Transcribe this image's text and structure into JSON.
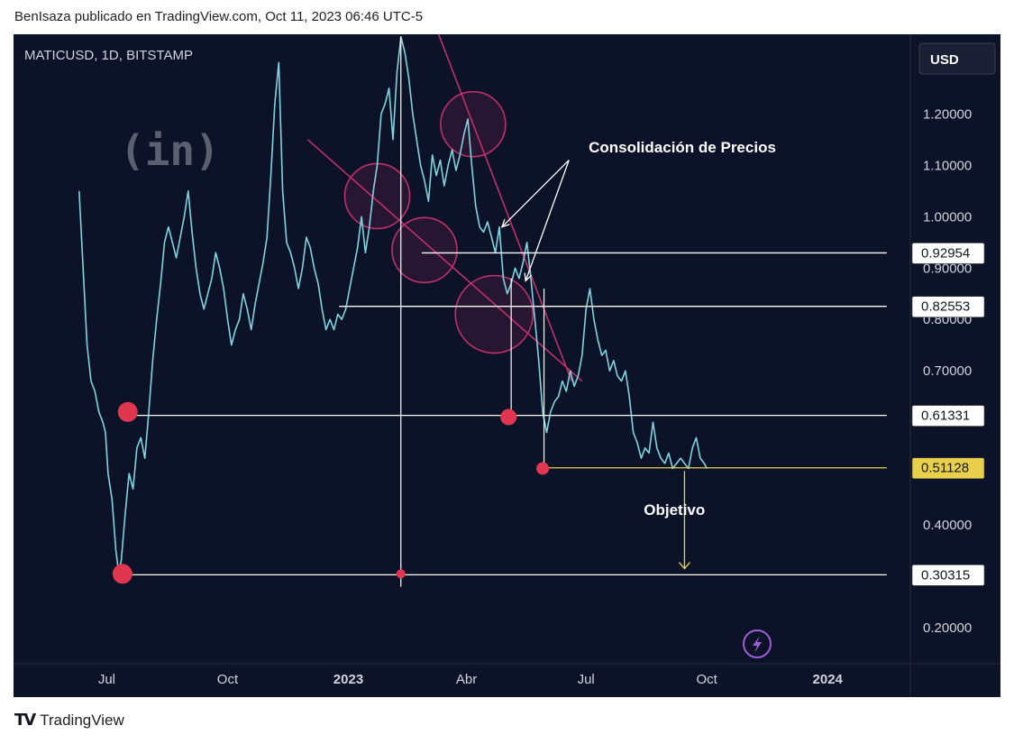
{
  "header": {
    "text": "BenIsaza publicado en TradingView.com, Oct 11, 2023 06:46 UTC-5"
  },
  "footer": {
    "logo": "TV",
    "brand": "TradingView"
  },
  "chart_data": {
    "type": "line",
    "symbol": "MATICUSD, 1D, BITSTAMP",
    "currency": "USD",
    "watermark": "(in)",
    "ylim": [
      0.13,
      1.355
    ],
    "y_ticks": [
      "1.20000",
      "1.10000",
      "1.00000",
      "0.90000",
      "0.80000",
      "0.70000",
      "0.40000",
      "0.20000"
    ],
    "y_tick_values": [
      1.2,
      1.1,
      1.0,
      0.9,
      0.8,
      0.7,
      0.4,
      0.2
    ],
    "x_tick_labels": [
      {
        "label": "Jul",
        "t": 21,
        "bold": false
      },
      {
        "label": "Oct",
        "t": 113,
        "bold": false
      },
      {
        "label": "2023",
        "t": 205,
        "bold": true
      },
      {
        "label": "Abr",
        "t": 295,
        "bold": false
      },
      {
        "label": "Jul",
        "t": 386,
        "bold": false
      },
      {
        "label": "Oct",
        "t": 478,
        "bold": false
      },
      {
        "label": "2024",
        "t": 570,
        "bold": true
      }
    ],
    "xlim": [
      -50,
      633
    ],
    "price_series": [
      [
        0,
        1.05
      ],
      [
        3,
        0.9
      ],
      [
        6,
        0.75
      ],
      [
        9,
        0.68
      ],
      [
        12,
        0.66
      ],
      [
        15,
        0.62
      ],
      [
        18,
        0.6
      ],
      [
        20,
        0.58
      ],
      [
        22,
        0.5
      ],
      [
        25,
        0.45
      ],
      [
        28,
        0.35
      ],
      [
        30,
        0.31
      ],
      [
        32,
        0.33
      ],
      [
        35,
        0.42
      ],
      [
        38,
        0.5
      ],
      [
        41,
        0.47
      ],
      [
        44,
        0.55
      ],
      [
        47,
        0.57
      ],
      [
        50,
        0.53
      ],
      [
        53,
        0.62
      ],
      [
        56,
        0.72
      ],
      [
        59,
        0.8
      ],
      [
        62,
        0.87
      ],
      [
        65,
        0.95
      ],
      [
        68,
        0.98
      ],
      [
        71,
        0.95
      ],
      [
        74,
        0.92
      ],
      [
        77,
        0.96
      ],
      [
        80,
        1.0
      ],
      [
        83,
        1.05
      ],
      [
        86,
        0.97
      ],
      [
        89,
        0.9
      ],
      [
        92,
        0.85
      ],
      [
        95,
        0.82
      ],
      [
        98,
        0.85
      ],
      [
        101,
        0.88
      ],
      [
        104,
        0.93
      ],
      [
        107,
        0.9
      ],
      [
        110,
        0.86
      ],
      [
        113,
        0.8
      ],
      [
        116,
        0.75
      ],
      [
        119,
        0.78
      ],
      [
        122,
        0.8
      ],
      [
        125,
        0.85
      ],
      [
        128,
        0.82
      ],
      [
        131,
        0.78
      ],
      [
        134,
        0.83
      ],
      [
        137,
        0.87
      ],
      [
        140,
        0.91
      ],
      [
        143,
        0.96
      ],
      [
        146,
        1.08
      ],
      [
        149,
        1.22
      ],
      [
        152,
        1.3
      ],
      [
        155,
        1.05
      ],
      [
        158,
        0.95
      ],
      [
        161,
        0.93
      ],
      [
        164,
        0.9
      ],
      [
        167,
        0.86
      ],
      [
        170,
        0.9
      ],
      [
        173,
        0.96
      ],
      [
        176,
        0.94
      ],
      [
        179,
        0.9
      ],
      [
        182,
        0.87
      ],
      [
        185,
        0.82
      ],
      [
        188,
        0.78
      ],
      [
        191,
        0.8
      ],
      [
        194,
        0.78
      ],
      [
        197,
        0.81
      ],
      [
        200,
        0.8
      ],
      [
        203,
        0.82
      ],
      [
        206,
        0.86
      ],
      [
        209,
        0.9
      ],
      [
        212,
        0.94
      ],
      [
        215,
        1.0
      ],
      [
        218,
        0.93
      ],
      [
        221,
        0.98
      ],
      [
        224,
        1.05
      ],
      [
        227,
        1.1
      ],
      [
        230,
        1.2
      ],
      [
        233,
        1.22
      ],
      [
        236,
        1.25
      ],
      [
        239,
        1.15
      ],
      [
        242,
        1.28
      ],
      [
        245,
        1.35
      ],
      [
        248,
        1.32
      ],
      [
        251,
        1.27
      ],
      [
        254,
        1.2
      ],
      [
        257,
        1.15
      ],
      [
        260,
        1.1
      ],
      [
        263,
        1.07
      ],
      [
        266,
        1.03
      ],
      [
        269,
        1.12
      ],
      [
        272,
        1.08
      ],
      [
        275,
        1.11
      ],
      [
        278,
        1.06
      ],
      [
        281,
        1.1
      ],
      [
        284,
        1.13
      ],
      [
        287,
        1.09
      ],
      [
        290,
        1.12
      ],
      [
        293,
        1.16
      ],
      [
        296,
        1.19
      ],
      [
        299,
        1.1
      ],
      [
        302,
        1.02
      ],
      [
        305,
        0.98
      ],
      [
        308,
        0.97
      ],
      [
        311,
        0.99
      ],
      [
        314,
        0.96
      ],
      [
        317,
        0.93
      ],
      [
        320,
        0.98
      ],
      [
        323,
        0.88
      ],
      [
        326,
        0.85
      ],
      [
        329,
        0.87
      ],
      [
        332,
        0.9
      ],
      [
        335,
        0.88
      ],
      [
        338,
        0.91
      ],
      [
        341,
        0.95
      ],
      [
        344,
        0.88
      ],
      [
        347,
        0.8
      ],
      [
        350,
        0.72
      ],
      [
        353,
        0.62
      ],
      [
        356,
        0.58
      ],
      [
        359,
        0.62
      ],
      [
        362,
        0.64
      ],
      [
        365,
        0.65
      ],
      [
        368,
        0.68
      ],
      [
        371,
        0.66
      ],
      [
        374,
        0.7
      ],
      [
        377,
        0.67
      ],
      [
        380,
        0.69
      ],
      [
        383,
        0.73
      ],
      [
        386,
        0.82
      ],
      [
        389,
        0.86
      ],
      [
        392,
        0.8
      ],
      [
        395,
        0.76
      ],
      [
        398,
        0.73
      ],
      [
        401,
        0.74
      ],
      [
        404,
        0.7
      ],
      [
        407,
        0.72
      ],
      [
        410,
        0.69
      ],
      [
        413,
        0.68
      ],
      [
        416,
        0.7
      ],
      [
        419,
        0.65
      ],
      [
        422,
        0.58
      ],
      [
        425,
        0.56
      ],
      [
        428,
        0.53
      ],
      [
        431,
        0.55
      ],
      [
        434,
        0.54
      ],
      [
        437,
        0.6
      ],
      [
        440,
        0.55
      ],
      [
        443,
        0.53
      ],
      [
        446,
        0.52
      ],
      [
        449,
        0.54
      ],
      [
        452,
        0.51
      ],
      [
        455,
        0.52
      ],
      [
        458,
        0.53
      ],
      [
        461,
        0.52
      ],
      [
        464,
        0.51
      ],
      [
        467,
        0.55
      ],
      [
        470,
        0.57
      ],
      [
        473,
        0.53
      ],
      [
        476,
        0.52
      ],
      [
        478,
        0.51
      ]
    ],
    "price_boxes": [
      {
        "label": "0.92954",
        "y": 0.92954,
        "highlight": false
      },
      {
        "label": "0.82553",
        "y": 0.82553,
        "highlight": false
      },
      {
        "label": "0.61331",
        "y": 0.61331,
        "highlight": false
      },
      {
        "label": "0.51128",
        "y": 0.51128,
        "highlight": true
      },
      {
        "label": "0.30315",
        "y": 0.30315,
        "highlight": false
      }
    ],
    "hlines": [
      {
        "t1": 27,
        "t2": 615,
        "y": 0.30315,
        "color": "#ffffff"
      },
      {
        "t1": 37,
        "t2": 615,
        "y": 0.61331,
        "color": "#ffffff"
      },
      {
        "t1": 198,
        "t2": 615,
        "y": 0.82553,
        "color": "#ffffff"
      },
      {
        "t1": 261,
        "t2": 615,
        "y": 0.92954,
        "color": "#ffffff"
      },
      {
        "t1": 354,
        "t2": 615,
        "y": 0.51128,
        "color": "#e8d04a"
      }
    ],
    "vlines": [
      {
        "t": 245,
        "y1": 0.28,
        "y2": 1.35
      },
      {
        "t": 329,
        "y1": 0.61331,
        "y2": 0.88
      },
      {
        "t": 354,
        "y1": 0.51128,
        "y2": 0.86
      }
    ],
    "trendlines": [
      {
        "t1": 174,
        "y1": 1.15,
        "t2": 383,
        "y2": 0.68,
        "color": "#c0306a"
      },
      {
        "t1": 270,
        "y1": 1.38,
        "t2": 375,
        "y2": 0.68,
        "color": "#c0306a"
      }
    ],
    "circles": [
      {
        "t": 227,
        "y": 1.04
      },
      {
        "t": 300,
        "y": 1.18
      },
      {
        "t": 263,
        "y": 0.935
      },
      {
        "t": 316,
        "y": 0.81
      }
    ],
    "dots": [
      {
        "t": 37,
        "y": 0.62,
        "r": 11
      },
      {
        "t": 33,
        "y": 0.305,
        "r": 11
      },
      {
        "t": 245,
        "y": 0.305,
        "r": 5
      },
      {
        "t": 327,
        "y": 0.61,
        "r": 9
      },
      {
        "t": 353,
        "y": 0.51,
        "r": 7
      }
    ],
    "annotations": [
      {
        "text": "Consolidación de Precios",
        "t": 388,
        "y": 1.125
      },
      {
        "text": "Objetivo",
        "t": 430,
        "y": 0.42
      }
    ],
    "arrows_consolidacion": [
      {
        "from_t": 373,
        "from_y": 1.11,
        "to_t": 322,
        "to_y": 0.98
      },
      {
        "from_t": 373,
        "from_y": 1.11,
        "to_t": 340,
        "to_y": 0.875
      }
    ],
    "arrow_objetivo": {
      "t": 461,
      "from_y": 0.505,
      "to_y": 0.315
    },
    "colors": {
      "background": "#0c1228",
      "price": "#7fd4e0",
      "levels": "#ffffff",
      "highlight": "#e8d04a",
      "trend": "#c0306a",
      "dot": "#e0364f",
      "boxbg": "#ffffff"
    }
  }
}
